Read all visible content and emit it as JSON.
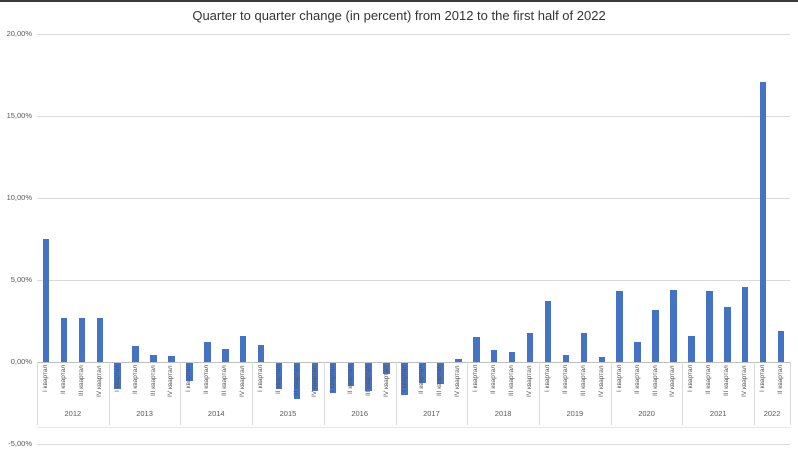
{
  "title": "Quarter to quarter change (in percent) from 2012 to the first half of 2022",
  "colors": {
    "bar": "#4472C4",
    "gridline": "#D9D9D9",
    "axis_line": "#BFBFBF",
    "text": "#595959",
    "title_text": "#333333"
  },
  "y_axis": {
    "ticks": [
      {
        "label": "20,00%",
        "value": 20
      },
      {
        "label": "15,00%",
        "value": 15
      },
      {
        "label": "10,00%",
        "value": 10
      },
      {
        "label": "5,00%",
        "value": 5
      },
      {
        "label": "0,00%",
        "value": 0
      },
      {
        "label": "-5,00%",
        "value": -5
      }
    ]
  },
  "chart_data": {
    "type": "bar",
    "title": "Quarter to quarter change (in percent) from 2012 to the first half of 2022",
    "ylabel": "",
    "xlabel": "",
    "ylim": [
      -5,
      20
    ],
    "grid": true,
    "legend": false,
    "value_unit": "percent",
    "groups": [
      {
        "year": "2012",
        "quarters": [
          "I квартал",
          "II квартал",
          "III квартал",
          "IV квартал"
        ],
        "values": [
          7.5,
          2.7,
          2.7,
          2.7
        ]
      },
      {
        "year": "2013",
        "quarters": [
          "I квартал",
          "II квартал",
          "III квартал",
          "IV квартал"
        ],
        "values": [
          -1.6,
          1.0,
          0.45,
          0.35
        ]
      },
      {
        "year": "2014",
        "quarters": [
          "I квартал",
          "II квартал",
          "III квартал",
          "IV квартал"
        ],
        "values": [
          -1.1,
          1.25,
          0.8,
          1.6
        ]
      },
      {
        "year": "2015",
        "quarters": [
          "I квартал",
          "II квартал",
          "III квартал",
          "IV квартал"
        ],
        "values": [
          1.05,
          -1.6,
          -2.2,
          -1.7
        ]
      },
      {
        "year": "2016",
        "quarters": [
          "I квартал",
          "II квартал",
          "III квартал",
          "IV квартал"
        ],
        "values": [
          -1.85,
          -1.4,
          -1.7,
          -0.7
        ]
      },
      {
        "year": "2017",
        "quarters": [
          "I квартал",
          "II квартал",
          "III квартал",
          "IV квартал"
        ],
        "values": [
          -1.95,
          -1.2,
          -1.3,
          0.2
        ]
      },
      {
        "year": "2018",
        "quarters": [
          "I квартал",
          "II квартал",
          "III квартал",
          "IV квартал"
        ],
        "values": [
          1.5,
          0.75,
          0.6,
          1.75
        ]
      },
      {
        "year": "2019",
        "quarters": [
          "I квартал",
          "II квартал",
          "III квартал",
          "IV квартал"
        ],
        "values": [
          3.7,
          0.4,
          1.75,
          0.3
        ]
      },
      {
        "year": "2020",
        "quarters": [
          "I квартал",
          "II квартал",
          "III квартал",
          "IV квартал"
        ],
        "values": [
          4.3,
          1.2,
          3.15,
          4.4
        ]
      },
      {
        "year": "2021",
        "quarters": [
          "I квартал",
          "II квартал",
          "III квартал",
          "IV квартал"
        ],
        "values": [
          1.6,
          4.3,
          3.35,
          4.6
        ]
      },
      {
        "year": "2022",
        "quarters": [
          "I квартал",
          "II квартал"
        ],
        "values": [
          17.1,
          1.9
        ]
      }
    ]
  }
}
